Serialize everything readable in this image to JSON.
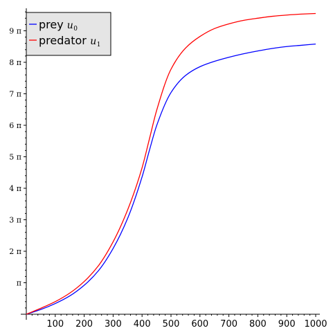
{
  "chart_data": {
    "type": "line",
    "title": "",
    "xlabel": "",
    "ylabel": "",
    "xlim": [
      0,
      1000
    ],
    "ylim_pi": [
      0,
      9.65
    ],
    "x_ticks": [
      100,
      200,
      300,
      400,
      500,
      600,
      700,
      800,
      900,
      1000
    ],
    "x_tick_labels": [
      "100",
      "200",
      "300",
      "400",
      "500",
      "600",
      "700",
      "800",
      "900",
      "1000"
    ],
    "y_ticks_pi": [
      1,
      2,
      3,
      4,
      5,
      6,
      7,
      8,
      9
    ],
    "y_tick_labels": [
      "π",
      "2 π",
      "3 π",
      "4 π",
      "5 π",
      "6 π",
      "7 π",
      "8 π",
      "9 π"
    ],
    "grid": false,
    "legend_placement": "top-left",
    "series": [
      {
        "name": "prey",
        "symbol": "u",
        "subscript": "0",
        "color": "#0000ff",
        "x": [
          0,
          50,
          100,
          150,
          200,
          250,
          300,
          350,
          400,
          425,
          450,
          500,
          550,
          600,
          650,
          700,
          750,
          800,
          850,
          900,
          950,
          1000
        ],
        "y_pi": [
          0.0,
          0.15,
          0.34,
          0.58,
          0.92,
          1.39,
          2.09,
          3.04,
          4.36,
          5.19,
          5.98,
          7.04,
          7.58,
          7.86,
          8.03,
          8.16,
          8.27,
          8.36,
          8.44,
          8.5,
          8.54,
          8.58
        ]
      },
      {
        "name": "predator",
        "symbol": "u",
        "subscript": "1",
        "color": "#ff0000",
        "x": [
          0,
          50,
          100,
          150,
          200,
          250,
          300,
          350,
          400,
          425,
          450,
          500,
          550,
          600,
          650,
          700,
          750,
          800,
          850,
          900,
          950,
          1000
        ],
        "y_pi": [
          0.0,
          0.19,
          0.4,
          0.67,
          1.04,
          1.55,
          2.3,
          3.31,
          4.65,
          5.55,
          6.46,
          7.78,
          8.45,
          8.82,
          9.07,
          9.22,
          9.33,
          9.4,
          9.46,
          9.5,
          9.53,
          9.55
        ]
      }
    ]
  }
}
